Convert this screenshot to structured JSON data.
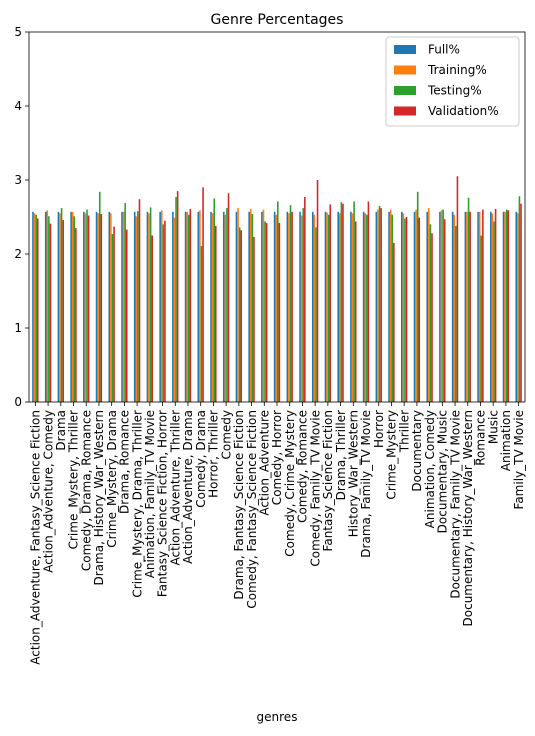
{
  "chart_data": {
    "type": "bar",
    "title": "Genre Percentages",
    "xlabel": "genres",
    "ylabel": "",
    "ylim": [
      0,
      5
    ],
    "yticks": [
      0,
      1,
      2,
      3,
      4,
      5
    ],
    "legend_position": "top-right",
    "categories": [
      "Action_Adventure, Fantasy_Science Fiction",
      "Action_Adventure, Comedy",
      "Drama",
      "Crime_Mystery, Thriller",
      "Comedy, Drama, Romance",
      "Drama, History_War_Western",
      "Crime_Mystery, Drama",
      "Drama, Romance",
      "Crime_Mystery, Drama, Thriller",
      "Animation, Family_TV Movie",
      "Fantasy_Science Fiction, Horror",
      "Action_Adventure, Thriller",
      "Action_Adventure, Drama",
      "Comedy, Drama",
      "Horror, Thriller",
      "Comedy",
      "Drama, Fantasy_Science Fiction",
      "Comedy, Fantasy_Science Fiction",
      "Action_Adventure",
      "Comedy, Horror",
      "Comedy, Crime_Mystery",
      "Comedy, Romance",
      "Comedy, Family_TV Movie",
      "Fantasy_Science Fiction",
      "Drama, Thriller",
      "History_War_Western",
      "Drama, Family_TV Movie",
      "Horror",
      "Crime_Mystery",
      "Thriller",
      "Documentary",
      "Animation, Comedy",
      "Documentary, Music",
      "Documentary, Family_TV Movie",
      "Documentary, History_War_Western",
      "Romance",
      "Music",
      "Animation",
      "Family_TV Movie"
    ],
    "series": [
      {
        "name": "Full%",
        "color": "#1f77b4",
        "values": [
          2.57,
          2.57,
          2.57,
          2.57,
          2.57,
          2.57,
          2.57,
          2.57,
          2.57,
          2.57,
          2.57,
          2.57,
          2.57,
          2.57,
          2.57,
          2.57,
          2.57,
          2.57,
          2.57,
          2.57,
          2.57,
          2.57,
          2.57,
          2.57,
          2.57,
          2.57,
          2.57,
          2.57,
          2.57,
          2.57,
          2.57,
          2.57,
          2.57,
          2.57,
          2.57,
          2.57,
          2.57,
          2.57,
          2.57
        ]
      },
      {
        "name": "Training%",
        "color": "#ff7f0e",
        "values": [
          2.55,
          2.59,
          2.55,
          2.57,
          2.55,
          2.55,
          2.55,
          2.57,
          2.51,
          2.55,
          2.59,
          2.49,
          2.57,
          2.59,
          2.55,
          2.53,
          2.62,
          2.61,
          2.6,
          2.53,
          2.55,
          2.52,
          2.53,
          2.56,
          2.55,
          2.55,
          2.55,
          2.6,
          2.6,
          2.55,
          2.6,
          2.62,
          2.59,
          2.53,
          2.57,
          2.57,
          2.55,
          2.57,
          2.55
        ]
      },
      {
        "name": "Testing%",
        "color": "#2ca02c",
        "values": [
          2.53,
          2.51,
          2.62,
          2.51,
          2.6,
          2.84,
          2.27,
          2.69,
          2.58,
          2.63,
          2.4,
          2.77,
          2.53,
          2.11,
          2.75,
          2.62,
          2.36,
          2.54,
          2.44,
          2.71,
          2.66,
          2.62,
          2.36,
          2.53,
          2.7,
          2.71,
          2.53,
          2.65,
          2.53,
          2.48,
          2.84,
          2.4,
          2.6,
          2.38,
          2.76,
          2.25,
          2.44,
          2.6,
          2.78
        ]
      },
      {
        "name": "Validation%",
        "color": "#d62728",
        "values": [
          2.48,
          2.41,
          2.46,
          2.35,
          2.52,
          2.54,
          2.37,
          2.33,
          2.74,
          2.25,
          2.45,
          2.85,
          2.61,
          2.9,
          2.38,
          2.82,
          2.32,
          2.23,
          2.42,
          2.42,
          2.57,
          2.77,
          3.0,
          2.67,
          2.68,
          2.44,
          2.71,
          2.62,
          2.15,
          2.5,
          2.49,
          2.28,
          2.47,
          3.05,
          2.57,
          2.6,
          2.61,
          2.59,
          2.68
        ]
      }
    ]
  }
}
